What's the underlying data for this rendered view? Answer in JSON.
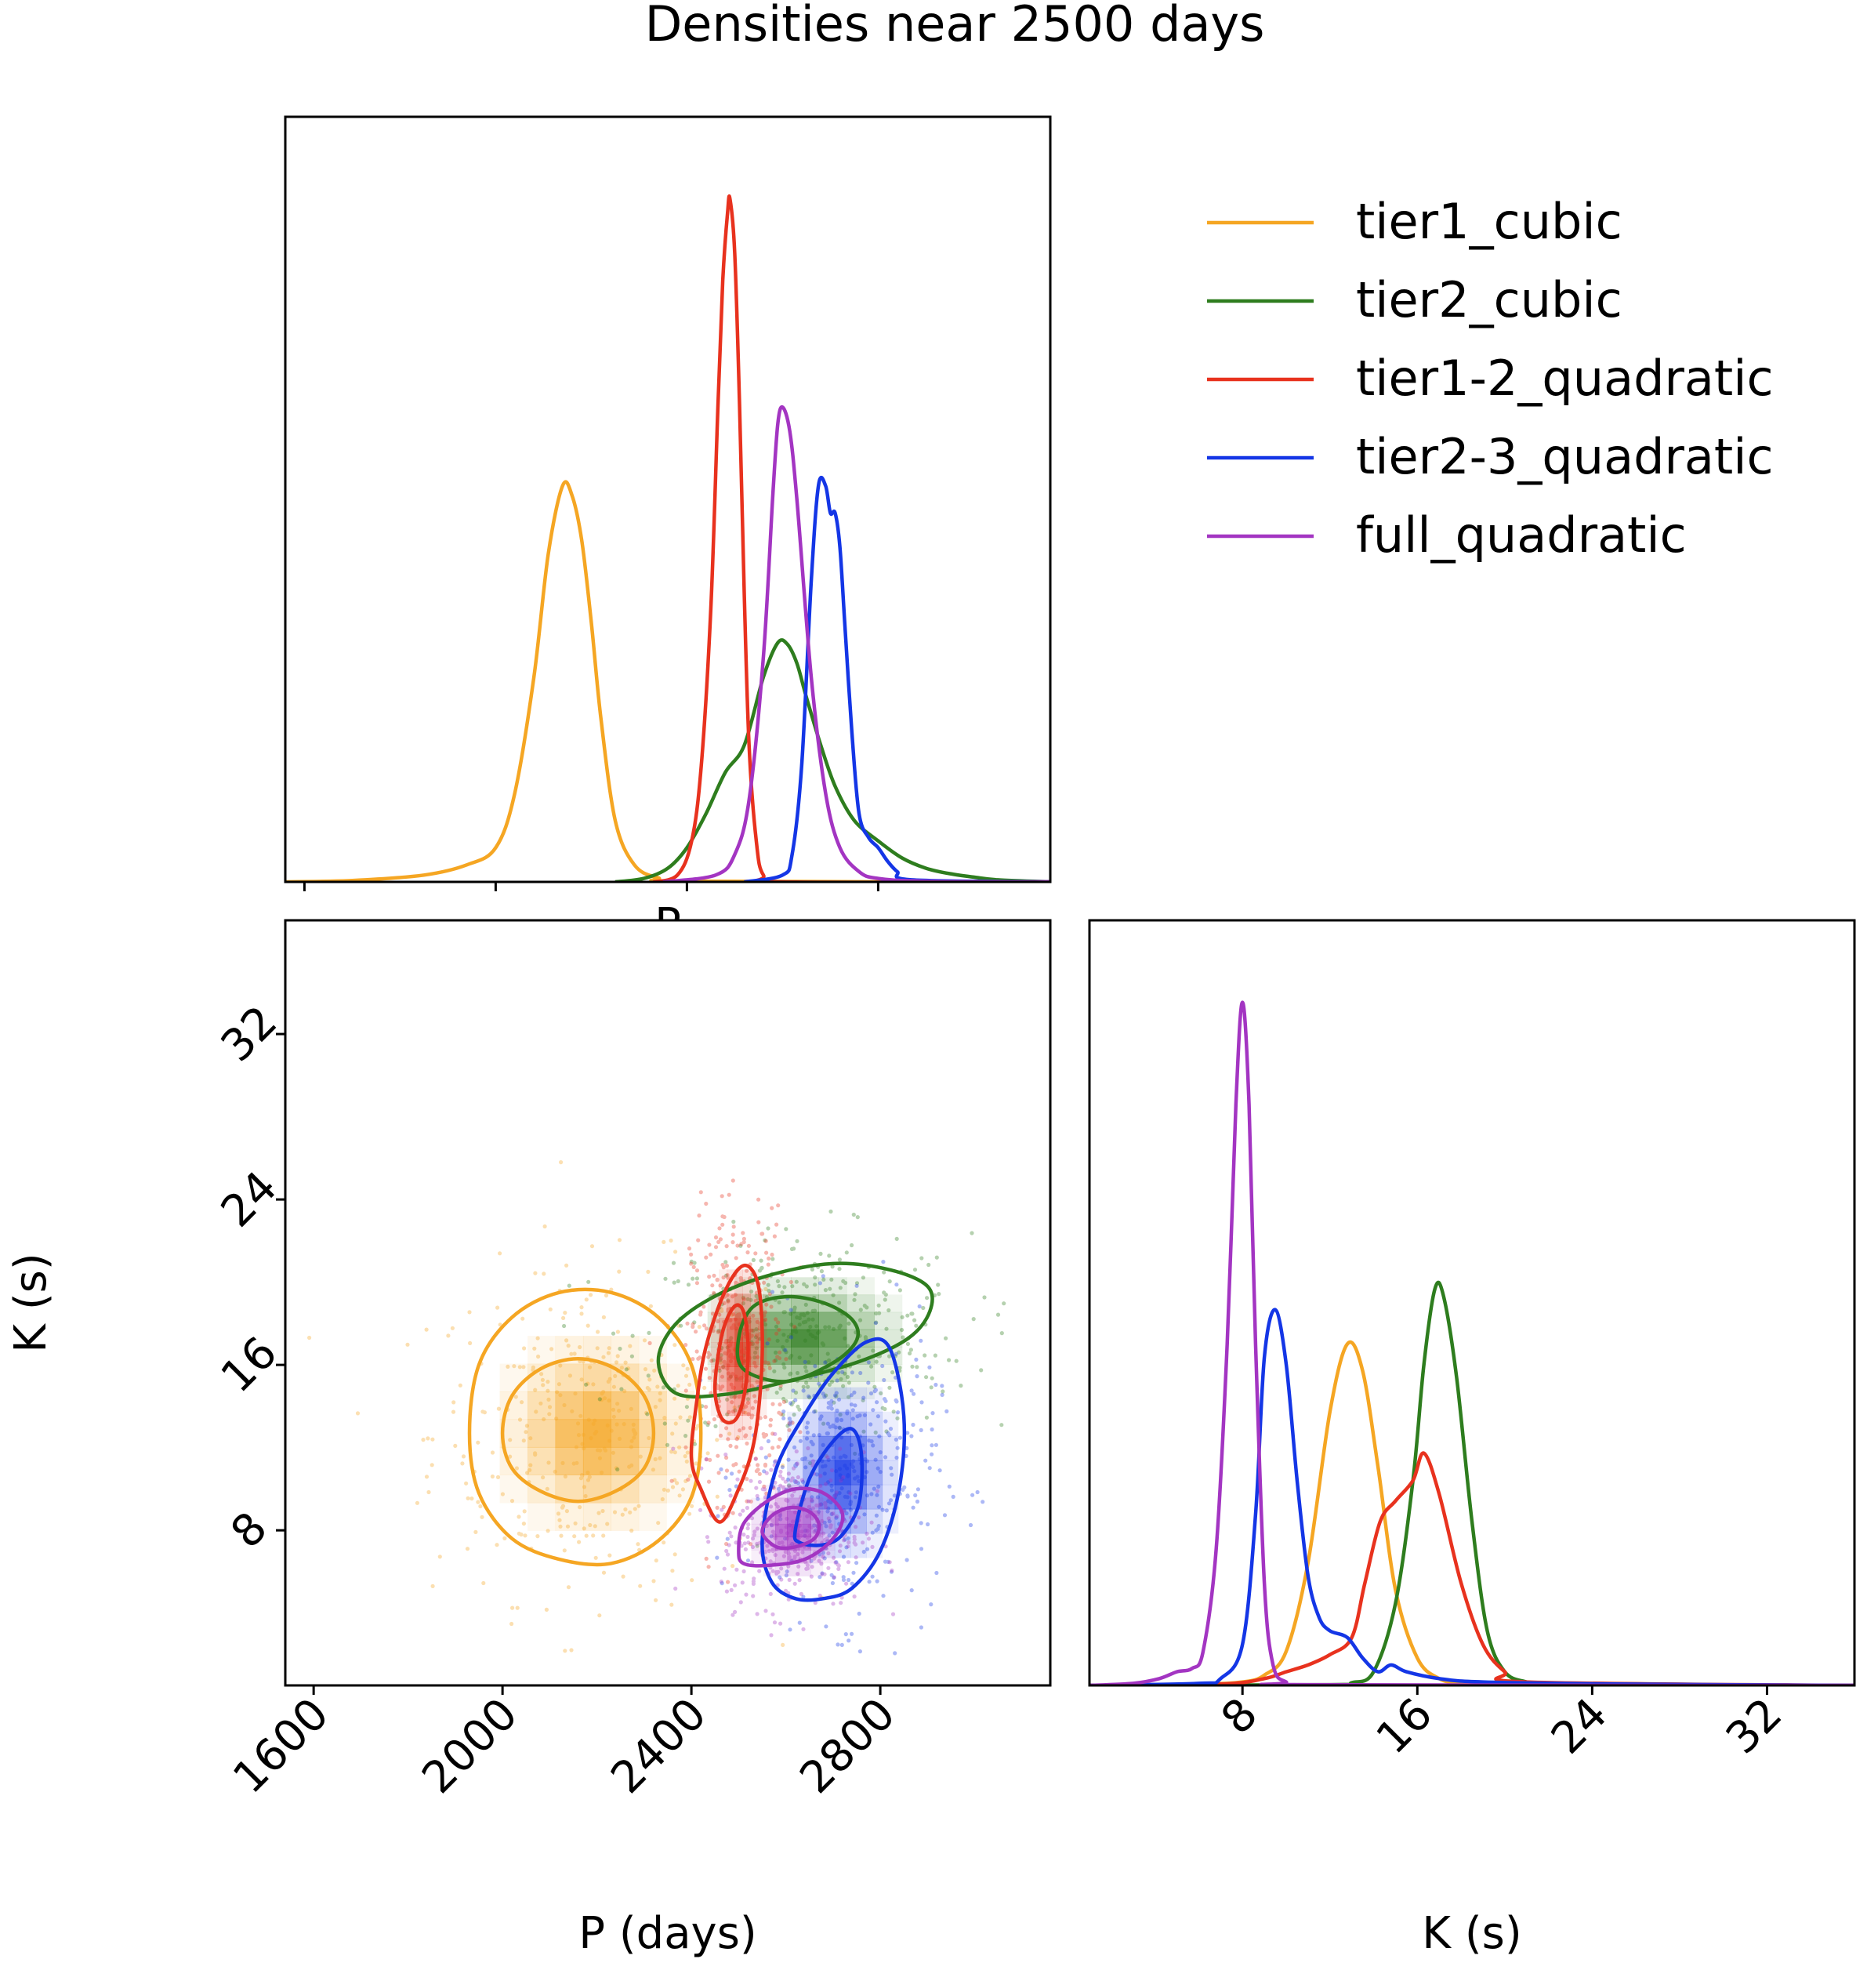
{
  "title": "Densities near 2500 days",
  "colors": {
    "tier1_cubic": "#f5a623",
    "tier2_cubic": "#2e7d1e",
    "tier1_2_quadratic": "#e8321e",
    "tier2_3_quadratic": "#1436e6",
    "full_quadratic": "#a335c2"
  },
  "chart_data": [
    {
      "id": "p_marginal",
      "type": "line",
      "title": "",
      "xlabel": "P",
      "ylabel": "",
      "xlim": [
        1560,
        3160
      ],
      "ylim": [
        0,
        1.12
      ],
      "series": [
        {
          "name": "tier1_cubic",
          "x": [
            1560,
            1700,
            1850,
            1940,
            2000,
            2040,
            2080,
            2110,
            2140,
            2160,
            2180,
            2200,
            2220,
            2250,
            2290,
            2340,
            2400,
            3160
          ],
          "y": [
            0,
            0.002,
            0.01,
            0.025,
            0.05,
            0.13,
            0.3,
            0.48,
            0.58,
            0.565,
            0.5,
            0.38,
            0.24,
            0.09,
            0.025,
            0.006,
            0.001,
            0
          ]
        },
        {
          "name": "tier2_cubic",
          "x": [
            2250,
            2310,
            2360,
            2400,
            2440,
            2480,
            2520,
            2560,
            2590,
            2610,
            2630,
            2650,
            2680,
            2710,
            2750,
            2800,
            2850,
            2900,
            2950,
            3000,
            3050,
            3160
          ],
          "y": [
            0,
            0.005,
            0.02,
            0.05,
            0.1,
            0.16,
            0.2,
            0.3,
            0.35,
            0.348,
            0.32,
            0.27,
            0.2,
            0.14,
            0.09,
            0.06,
            0.035,
            0.02,
            0.012,
            0.007,
            0.003,
            0
          ]
        },
        {
          "name": "tier1-2_quadratic",
          "x": [
            2330,
            2380,
            2410,
            2430,
            2450,
            2465,
            2475,
            2485,
            2490,
            2500,
            2510,
            2520,
            2530,
            2545,
            2560,
            2600,
            3160
          ],
          "y": [
            0,
            0.01,
            0.06,
            0.17,
            0.4,
            0.7,
            0.88,
            0.98,
            1.0,
            0.92,
            0.7,
            0.42,
            0.2,
            0.06,
            0.01,
            0.0,
            0
          ]
        },
        {
          "name": "tier2-3_quadratic",
          "x": [
            2520,
            2600,
            2620,
            2640,
            2660,
            2675,
            2690,
            2700,
            2710,
            2720,
            2730,
            2745,
            2760,
            2780,
            2800,
            2820,
            2840,
            2870,
            3160
          ],
          "y": [
            0,
            0.01,
            0.04,
            0.17,
            0.44,
            0.58,
            0.58,
            0.54,
            0.54,
            0.49,
            0.38,
            0.22,
            0.1,
            0.065,
            0.05,
            0.03,
            0.015,
            0.003,
            0
          ]
        },
        {
          "name": "full_quadratic",
          "x": [
            2350,
            2460,
            2500,
            2530,
            2560,
            2580,
            2590,
            2600,
            2615,
            2630,
            2660,
            2690,
            2720,
            2760,
            2800,
            2900,
            3160
          ],
          "y": [
            0,
            0.01,
            0.04,
            0.12,
            0.33,
            0.57,
            0.67,
            0.695,
            0.66,
            0.56,
            0.3,
            0.13,
            0.05,
            0.015,
            0.005,
            0.001,
            0
          ]
        }
      ]
    },
    {
      "id": "pk_joint",
      "type": "scatter",
      "title": "",
      "xlabel": "P (days)",
      "ylabel": "K (s)",
      "xlim": [
        1540,
        3160
      ],
      "ylim": [
        0.5,
        37.5
      ],
      "xticks": [
        "1600",
        "2000",
        "2400",
        "2800"
      ],
      "yticks": [
        "8",
        "16",
        "24",
        "32"
      ],
      "series": [
        {
          "name": "tier1_cubic",
          "center": [
            2200,
            12.7
          ],
          "spread": [
            140,
            3.2
          ],
          "contours": [
            {
              "level": "inner",
              "x": [
                2000,
                2020,
                2080,
                2160,
                2240,
                2300,
                2320,
                2300,
                2240,
                2160,
                2080,
                2020,
                2000
              ],
              "y": [
                12.7,
                14.5,
                15.8,
                16.3,
                15.8,
                14.5,
                12.7,
                11,
                9.9,
                9.4,
                9.9,
                11,
                12.7
              ]
            },
            {
              "level": "outer",
              "x": [
                1930,
                1950,
                2020,
                2120,
                2230,
                2330,
                2400,
                2420,
                2400,
                2330,
                2230,
                2120,
                2020,
                1950,
                1930
              ],
              "y": [
                12.7,
                16,
                18.3,
                19.5,
                19.5,
                18.3,
                16,
                12.7,
                9.6,
                7.5,
                6.4,
                6.6,
                7.6,
                9.8,
                12.7
              ]
            }
          ]
        },
        {
          "name": "tier2_cubic",
          "center": [
            2640,
            17.3
          ],
          "spread": [
            140,
            2.0
          ],
          "contours": [
            {
              "level": "inner",
              "x": [
                2500,
                2530,
                2600,
                2680,
                2740,
                2750,
                2700,
                2600,
                2510,
                2500
              ],
              "y": [
                17.3,
                18.8,
                19.3,
                19.0,
                18.2,
                17.2,
                16.1,
                15.2,
                15.8,
                17.3
              ]
            },
            {
              "level": "outer",
              "x": [
                2330,
                2360,
                2440,
                2560,
                2700,
                2820,
                2900,
                2905,
                2860,
                2760,
                2620,
                2480,
                2370,
                2330
              ],
              "y": [
                16.1,
                17.8,
                19.2,
                20.3,
                20.9,
                20.6,
                19.8,
                18.6,
                17.3,
                16.2,
                15.3,
                14.6,
                14.6,
                16.1
              ]
            }
          ]
        },
        {
          "name": "tier1-2_quadratic",
          "center": [
            2500,
            16.5
          ],
          "spread": [
            40,
            2.8
          ],
          "contours": [
            {
              "level": "inner",
              "x": [
                2450,
                2465,
                2490,
                2510,
                2520,
                2515,
                2500,
                2480,
                2460,
                2450
              ],
              "y": [
                15.0,
                17.5,
                18.8,
                18.6,
                17.0,
                15.0,
                13.6,
                13.2,
                13.6,
                15.0
              ]
            },
            {
              "level": "outer",
              "x": [
                2410,
                2430,
                2470,
                2510,
                2540,
                2550,
                2545,
                2530,
                2500,
                2460,
                2420,
                2400,
                2410
              ],
              "y": [
                14.0,
                16.8,
                19.5,
                20.8,
                20.0,
                17.5,
                14.5,
                12.0,
                10.0,
                8.4,
                10.0,
                11.5,
                14.0
              ]
            }
          ]
        },
        {
          "name": "tier2-3_quadratic",
          "center": [
            2720,
            10.8
          ],
          "spread": [
            80,
            2.8
          ],
          "contours": [
            {
              "level": "inner",
              "x": [
                2620,
                2650,
                2700,
                2740,
                2760,
                2755,
                2720,
                2680,
                2630,
                2620
              ],
              "y": [
                8.0,
                10.5,
                12.3,
                12.9,
                11.7,
                9.3,
                7.8,
                7.3,
                7.4,
                8.0
              ]
            },
            {
              "level": "outer",
              "x": [
                2550,
                2580,
                2640,
                2700,
                2770,
                2820,
                2850,
                2840,
                2800,
                2740,
                2680,
                2620,
                2570,
                2550
              ],
              "y": [
                7.5,
                11.0,
                13.6,
                15.6,
                17.1,
                16.8,
                13.5,
                10.0,
                7.0,
                5.2,
                4.7,
                4.7,
                5.5,
                7.5
              ]
            }
          ]
        },
        {
          "name": "full_quadratic",
          "center": [
            2615,
            8.0
          ],
          "spread": [
            60,
            1.5
          ],
          "contours": [
            {
              "level": "inner",
              "x": [
                2550,
                2570,
                2610,
                2650,
                2670,
                2660,
                2620,
                2580,
                2550
              ],
              "y": [
                7.9,
                8.7,
                9.1,
                8.9,
                8.3,
                7.6,
                7.2,
                7.2,
                7.9
              ]
            },
            {
              "level": "outer",
              "x": [
                2500,
                2510,
                2560,
                2620,
                2680,
                2720,
                2700,
                2640,
                2560,
                2510,
                2500
              ],
              "y": [
                7.0,
                8.3,
                9.4,
                10.0,
                9.8,
                8.8,
                7.6,
                6.6,
                6.3,
                6.4,
                7.0
              ]
            }
          ]
        }
      ]
    },
    {
      "id": "k_marginal",
      "type": "line",
      "title": "",
      "xlabel": "K (s)",
      "ylabel": "",
      "xlim": [
        1,
        36
      ],
      "ylim": [
        0,
        1.12
      ],
      "xticks": [
        "8",
        "16",
        "24",
        "32"
      ],
      "series": [
        {
          "name": "tier1_cubic",
          "x": [
            1,
            6,
            8,
            9,
            10,
            11,
            12,
            12.8,
            13.5,
            14.2,
            15,
            16,
            17,
            18,
            19,
            20,
            36
          ],
          "y": [
            0,
            0.002,
            0.005,
            0.015,
            0.05,
            0.18,
            0.4,
            0.5,
            0.46,
            0.32,
            0.14,
            0.04,
            0.01,
            0.003,
            0.001,
            0,
            0
          ]
        },
        {
          "name": "tier2_cubic",
          "x": [
            1,
            12,
            13,
            14,
            15,
            15.8,
            16.3,
            16.8,
            17.2,
            17.8,
            18.5,
            19.2,
            20,
            21,
            22,
            36
          ],
          "y": [
            0,
            0.001,
            0.004,
            0.02,
            0.12,
            0.3,
            0.47,
            0.58,
            0.57,
            0.45,
            0.24,
            0.08,
            0.02,
            0.005,
            0.001,
            0
          ]
        },
        {
          "name": "tier1-2_quadratic",
          "x": [
            1,
            7,
            9,
            10,
            11,
            12,
            13,
            13.6,
            14.3,
            15,
            15.8,
            16.3,
            17,
            18,
            19,
            20,
            21,
            36
          ],
          "y": [
            0,
            0.002,
            0.01,
            0.02,
            0.03,
            0.045,
            0.07,
            0.15,
            0.24,
            0.27,
            0.3,
            0.34,
            0.28,
            0.15,
            0.06,
            0.02,
            0.005,
            0
          ]
        },
        {
          "name": "tier2-3_quadratic",
          "x": [
            1,
            6,
            7,
            8,
            8.6,
            9,
            9.5,
            10,
            10.5,
            11,
            11.5,
            12,
            12.8,
            13.5,
            14.2,
            14.8,
            15.5,
            17,
            19,
            25,
            36
          ],
          "y": [
            0,
            0.003,
            0.01,
            0.06,
            0.25,
            0.48,
            0.55,
            0.47,
            0.3,
            0.16,
            0.1,
            0.08,
            0.07,
            0.04,
            0.02,
            0.03,
            0.02,
            0.01,
            0.005,
            0.002,
            0
          ]
        },
        {
          "name": "full_quadratic",
          "x": [
            1,
            3,
            4.2,
            5,
            5.7,
            6.2,
            6.8,
            7.3,
            7.7,
            8,
            8.3,
            8.6,
            9,
            9.4,
            10,
            11,
            36
          ],
          "y": [
            0,
            0.003,
            0.01,
            0.02,
            0.025,
            0.05,
            0.2,
            0.5,
            0.85,
            1.0,
            0.85,
            0.5,
            0.15,
            0.03,
            0.005,
            0.001,
            0
          ]
        }
      ]
    }
  ],
  "legend": {
    "position": "top-right",
    "entries": [
      "tier1_cubic",
      "tier2_cubic",
      "tier1-2_quadratic",
      "tier2-3_quadratic",
      "full_quadratic"
    ]
  },
  "stray_axis_label": "P"
}
